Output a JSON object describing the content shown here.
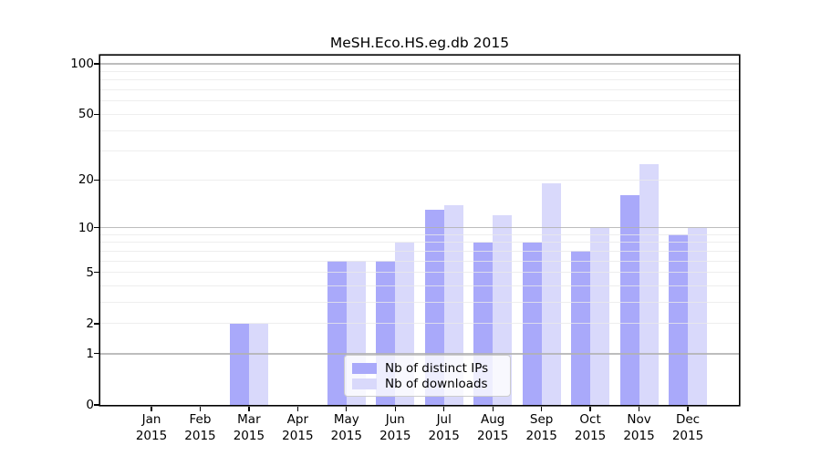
{
  "chart_data": {
    "type": "bar",
    "title": "MeSH.Eco.HS.eg.db 2015",
    "months": [
      "Jan",
      "Feb",
      "Mar",
      "Apr",
      "May",
      "Jun",
      "Jul",
      "Aug",
      "Sep",
      "Oct",
      "Nov",
      "Dec"
    ],
    "year_label": "2015",
    "categories": [
      "Jan 2015",
      "Feb 2015",
      "Mar 2015",
      "Apr 2015",
      "May 2015",
      "Jun 2015",
      "Jul 2015",
      "Aug 2015",
      "Sep 2015",
      "Oct 2015",
      "Nov 2015",
      "Dec 2015"
    ],
    "series": [
      {
        "name": "Nb of distinct IPs",
        "color": "#a9a9fa",
        "values": [
          0,
          0,
          2,
          0,
          6,
          6,
          13,
          8,
          8,
          7,
          16,
          9
        ]
      },
      {
        "name": "Nb of downloads",
        "color": "#d9d9fb",
        "values": [
          0,
          0,
          2,
          0,
          6,
          8,
          14,
          12,
          19,
          10,
          25,
          10
        ]
      }
    ],
    "xlabel": "",
    "ylabel": "",
    "y_axis": {
      "scale": "log10(value+1)",
      "tick_values": [
        0,
        1,
        2,
        5,
        10,
        20,
        50,
        100
      ],
      "major_gridlines": [
        1,
        10,
        100
      ],
      "minor_gridlines": [
        2,
        3,
        4,
        5,
        6,
        7,
        8,
        9,
        20,
        30,
        40,
        50,
        60,
        70,
        80,
        90
      ],
      "range_top_value": 112
    },
    "grid": true,
    "legend_position": "lower center"
  },
  "colors": {
    "bar_dark": "#a9a9fa",
    "bar_light": "#d9d9fb",
    "axis": "#000000",
    "major_grid": "#b2b2b2",
    "minor_grid": "#e9e9e9",
    "legend_border": "#cccccc"
  }
}
